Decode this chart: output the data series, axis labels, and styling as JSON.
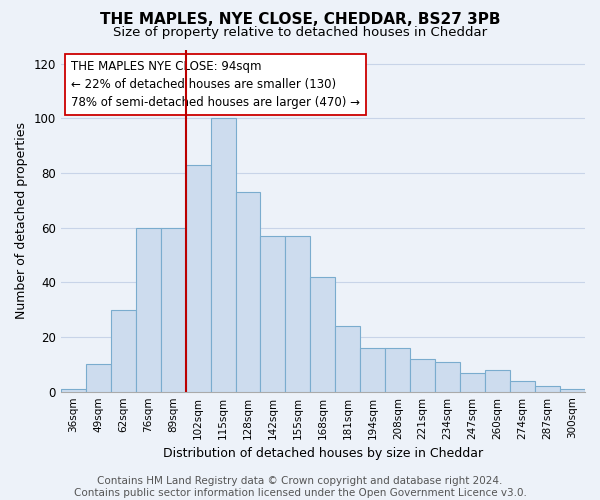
{
  "title": "THE MAPLES, NYE CLOSE, CHEDDAR, BS27 3PB",
  "subtitle": "Size of property relative to detached houses in Cheddar",
  "xlabel": "Distribution of detached houses by size in Cheddar",
  "ylabel": "Number of detached properties",
  "categories": [
    "36sqm",
    "49sqm",
    "62sqm",
    "76sqm",
    "89sqm",
    "102sqm",
    "115sqm",
    "128sqm",
    "142sqm",
    "155sqm",
    "168sqm",
    "181sqm",
    "194sqm",
    "208sqm",
    "221sqm",
    "234sqm",
    "247sqm",
    "260sqm",
    "274sqm",
    "287sqm",
    "300sqm"
  ],
  "values": [
    1,
    10,
    30,
    60,
    60,
    83,
    100,
    73,
    57,
    57,
    42,
    24,
    16,
    16,
    12,
    11,
    7,
    8,
    4,
    2,
    1
  ],
  "bar_color": "#cddcee",
  "bar_edge_color": "#7aacce",
  "red_line_x": 4.5,
  "highlight_line_color": "#bb0000",
  "annotation_line1": "THE MAPLES NYE CLOSE: 94sqm",
  "annotation_line2": "← 22% of detached houses are smaller (130)",
  "annotation_line3": "78% of semi-detached houses are larger (470) →",
  "annotation_box_color": "#ffffff",
  "annotation_box_edge": "#cc0000",
  "ylim": [
    0,
    125
  ],
  "yticks": [
    0,
    20,
    40,
    60,
    80,
    100,
    120
  ],
  "footer_text": "Contains HM Land Registry data © Crown copyright and database right 2024.\nContains public sector information licensed under the Open Government Licence v3.0.",
  "title_fontsize": 11,
  "subtitle_fontsize": 9.5,
  "xlabel_fontsize": 9,
  "ylabel_fontsize": 9,
  "annotation_fontsize": 8.5,
  "footer_fontsize": 7.5,
  "background_color": "#edf2f9",
  "grid_color": "#c8d4e8"
}
